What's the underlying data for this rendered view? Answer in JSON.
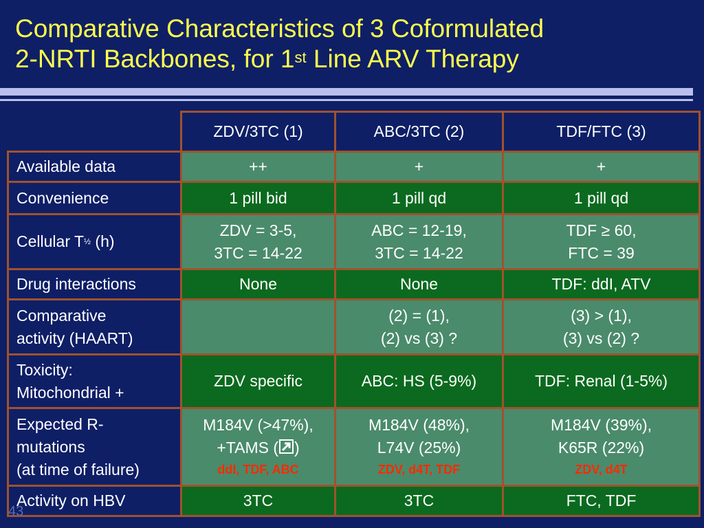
{
  "title": {
    "line1": "Comparative Characteristics of 3 Coformulated",
    "line2_pre": "2-NRTI Backbones, for 1",
    "line2_sup": "st",
    "line2_post": " Line ARV Therapy"
  },
  "columns": [
    "ZDV/3TC (1)",
    "ABC/3TC (2)",
    "TDF/FTC (3)"
  ],
  "rows": {
    "available": {
      "label": "Available data",
      "c1": "++",
      "c2": "+",
      "c3": "+"
    },
    "convenience": {
      "label": "Convenience",
      "c1": "1 pill bid",
      "c2": "1 pill qd",
      "c3": "1 pill qd"
    },
    "half_life": {
      "label_pre": "Cellular T",
      "label_sup": "½",
      "label_post": " (h)",
      "c1_l1": "ZDV = 3-5,",
      "c1_l2": "3TC = 14-22",
      "c2_l1": "ABC = 12-19,",
      "c2_l2": "3TC = 14-22",
      "c3_l1": "TDF ≥ 60,",
      "c3_l2": "FTC = 39"
    },
    "interactions": {
      "label": "Drug interactions",
      "c1": "None",
      "c2": "None",
      "c3": "TDF: ddI, ATV"
    },
    "activity": {
      "label_l1": "Comparative",
      "label_l2": "activity (HAART)",
      "c1": "",
      "c2_l1": "(2) = (1),",
      "c2_l2": "(2) vs (3) ?",
      "c3_l1": "(3) > (1),",
      "c3_l2": "(3) vs (2) ?"
    },
    "toxicity": {
      "label_l1": "Toxicity:",
      "label_l2": "Mitochondrial +",
      "c1": "ZDV specific",
      "c2": "ABC: HS (5-9%)",
      "c3": "TDF: Renal (1-5%)"
    },
    "mutations": {
      "label_l1": "Expected R-",
      "label_l2": "mutations",
      "label_l3": "(at time of failure)",
      "c1_l1": "M184V (>47%),",
      "c1_l2_pre": "+TAMS (",
      "c1_l2_icon": "arrow-up-right-icon",
      "c1_l2_post": ")",
      "c1_red": "ddI, TDF, ABC",
      "c2_l1": "M184V (48%),",
      "c2_l2": "L74V (25%)",
      "c2_red": "ZDV, d4T, TDF",
      "c3_l1": "M184V (39%),",
      "c3_l2": "K65R (22%)",
      "c3_red": "ZDV, d4T"
    },
    "hbv": {
      "label": "Activity on HBV",
      "c1": "3TC",
      "c2": "3TC",
      "c3": "FTC, TDF"
    }
  },
  "page_number": "43",
  "colors": {
    "background": "#0f1f66",
    "title": "#ffff4d",
    "cell_light": "#4a8b6b",
    "cell_dark": "#0b6a1f",
    "border": "#a0522d",
    "red_text": "#ff2a00"
  }
}
